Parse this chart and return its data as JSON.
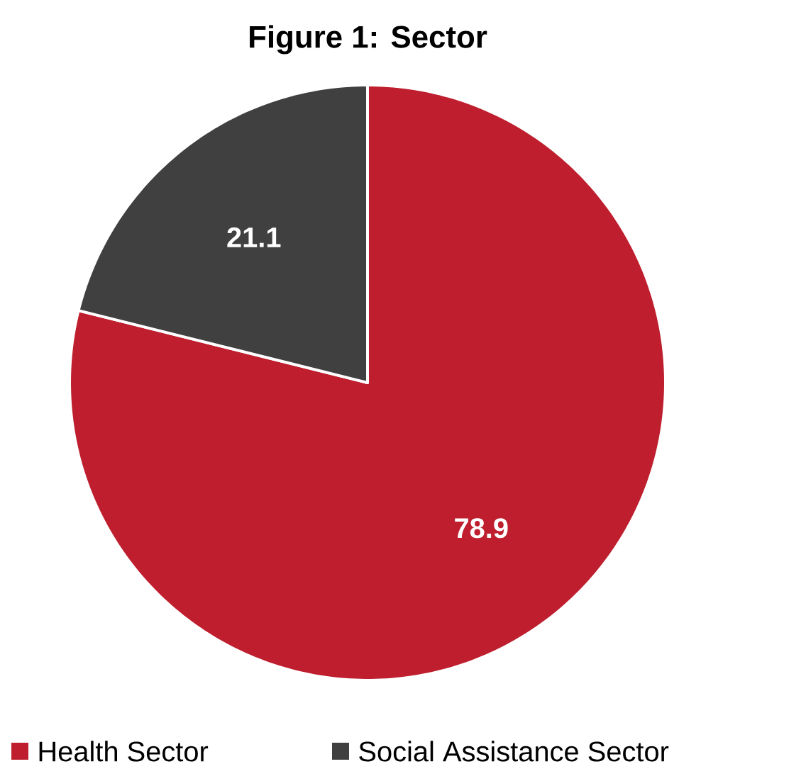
{
  "chart_data": {
    "type": "pie",
    "title": "Figure 1: Sector",
    "categories": [
      "Health Sector",
      "Social Assistance Sector"
    ],
    "values": [
      78.9,
      21.1
    ],
    "colors": [
      "#be1e2d",
      "#404040"
    ],
    "data_labels": true,
    "legend": "bottom"
  }
}
